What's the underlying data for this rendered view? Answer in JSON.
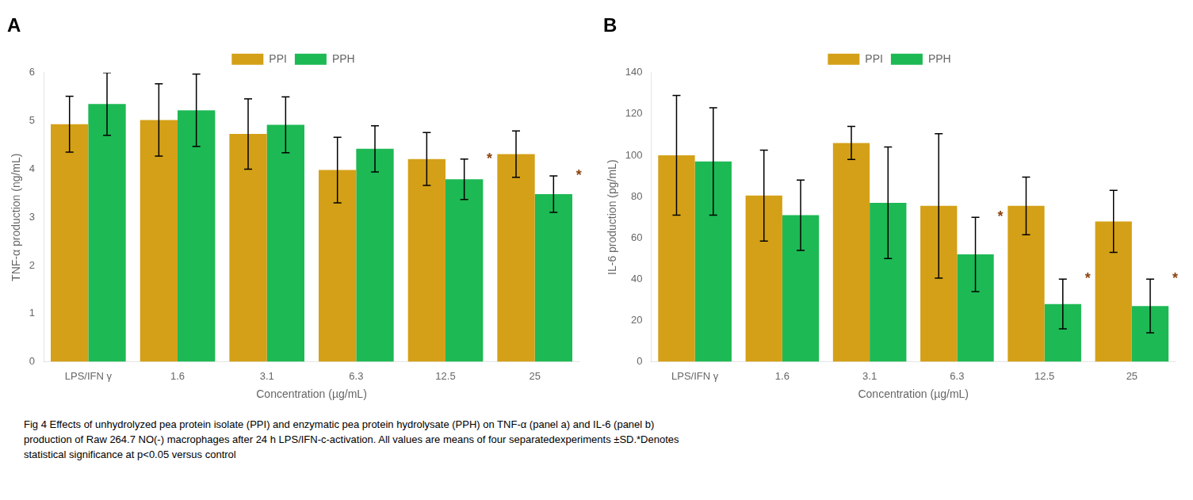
{
  "chart_data": [
    {
      "type": "bar",
      "title": "A",
      "xlabel": "Concentration (µg/mL)",
      "ylabel": "TNF-α production (ng/mL)",
      "categories": [
        "LPS/IFN γ",
        "1.6",
        "3.1",
        "6.3",
        "12.5",
        "25"
      ],
      "series": [
        {
          "name": "PPI",
          "color": "#D4A017",
          "values": [
            4.93,
            5.02,
            4.73,
            3.98,
            4.21,
            4.31
          ],
          "errors": [
            0.58,
            0.75,
            0.73,
            0.68,
            0.55,
            0.48
          ]
        },
        {
          "name": "PPH",
          "color": "#1DB954",
          "values": [
            5.35,
            5.22,
            4.92,
            4.42,
            3.79,
            3.48
          ],
          "errors": [
            0.65,
            0.75,
            0.58,
            0.48,
            0.42,
            0.38
          ]
        }
      ],
      "ylim": [
        0,
        6
      ],
      "yticks": [
        0,
        1,
        2,
        3,
        4,
        5,
        6
      ],
      "grid": false,
      "legend": "top",
      "annotations": [
        {
          "text": "*",
          "series": "PPH",
          "category": "12.5",
          "color": "#8B4513"
        },
        {
          "text": "*",
          "series": "PPH",
          "category": "25",
          "color": "#8B4513"
        }
      ]
    },
    {
      "type": "bar",
      "title": "B",
      "xlabel": "Concentration (µg/mL)",
      "ylabel": "IL-6 production (pg/mL)",
      "categories": [
        "LPS/IFN γ",
        "1.6",
        "3.1",
        "6.3",
        "12.5",
        "25"
      ],
      "series": [
        {
          "name": "PPI",
          "color": "#D4A017",
          "values": [
            100,
            80.5,
            106,
            75.5,
            75.5,
            68
          ],
          "errors": [
            29,
            22,
            8,
            35,
            14,
            15
          ]
        },
        {
          "name": "PPH",
          "color": "#1DB954",
          "values": [
            97,
            71,
            77,
            52,
            28,
            27
          ],
          "errors": [
            26,
            17,
            27,
            18,
            12,
            13
          ]
        }
      ],
      "ylim": [
        0,
        140
      ],
      "yticks": [
        0,
        20,
        40,
        60,
        80,
        100,
        120,
        140
      ],
      "grid": false,
      "legend": "top",
      "annotations": [
        {
          "text": "*",
          "series": "PPH",
          "category": "6.3",
          "color": "#8B4513"
        },
        {
          "text": "*",
          "series": "PPH",
          "category": "12.5",
          "color": "#8B4513"
        },
        {
          "text": "*",
          "series": "PPH",
          "category": "25",
          "color": "#8B4513"
        }
      ]
    }
  ],
  "annotations": [
    "Fig 4 Effects of unhydrolyzed pea protein isolate (PPI) and enzymatic pea protein hydrolysate (PPH) on TNF-α (panel a) and IL-6 (panel b)",
    "production of Raw 264.7 NO(-) macrophages after 24 h LPS/IFN-c-activation. All values are means of four separatedexperiments ±SD.*Denotes",
    "statistical significance at p<0.05 versus control"
  ]
}
